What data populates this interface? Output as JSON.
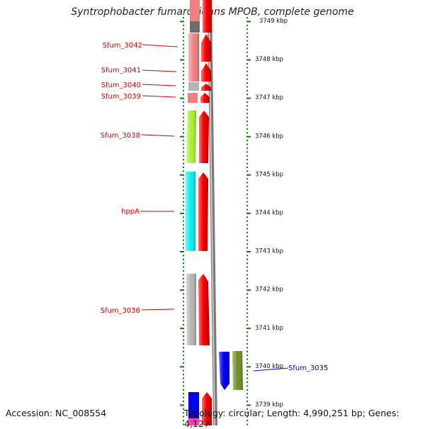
{
  "title": "Syntrophobacter fumaroxidans MPOB, complete genome",
  "footer": {
    "accession": "Accession: NC_008554",
    "topology": "Topology: circular; Length: 4,990,251 bp; Genes: 4,127"
  },
  "scale": {
    "unit": "kbp",
    "ticks": [
      "3749 kbp",
      "3748 kbp",
      "3747 kbp",
      "3746 kbp",
      "3745 kbp",
      "3744 kbp",
      "3743 kbp",
      "3742 kbp",
      "3741 kbp",
      "3740 kbp",
      "3739 kbp"
    ]
  },
  "genes": [
    {
      "label": "Sfum_3042",
      "color": "#f08080"
    },
    {
      "label": "Sfum_3041",
      "color": "#f08080"
    },
    {
      "label": "Sfum_3040",
      "color": "#b4b4b4"
    },
    {
      "label": "Sfum_3039",
      "color": "#f08080"
    },
    {
      "label": "Sfum_3038",
      "color": "#a8f030"
    },
    {
      "label": "hppA",
      "color": "#00f0f0"
    },
    {
      "label": "Sfum_3036",
      "color": "#b4b4b4"
    },
    {
      "label": "Sfum_3035",
      "color": "#6b8e23"
    }
  ],
  "colors": {
    "forward_label": "#cc0000",
    "reverse_label": "#0000cc",
    "cds_forward": "#ff0000",
    "cds_reverse": "#0000ff",
    "tick": "#008000",
    "backbone": "#808080"
  }
}
